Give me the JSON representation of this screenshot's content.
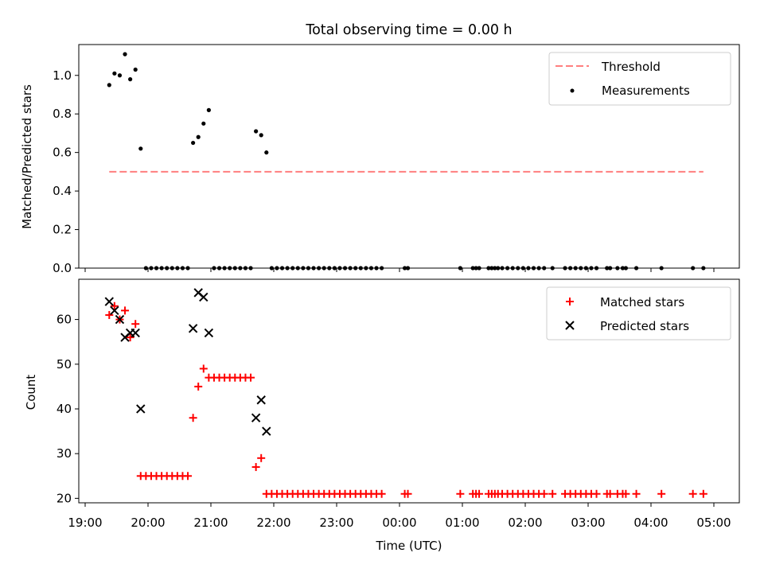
{
  "title": "Total observing time = 0.00 h",
  "colors": {
    "threshold": "#ff7f7f",
    "measurements": "#000000",
    "matched": "#ff0000",
    "predicted": "#000000"
  },
  "chart_data": [
    {
      "type": "scatter",
      "ylabel": "Matched/Predicted stars",
      "ylim": [
        0,
        1.16
      ],
      "yticks": [
        "0.0",
        "0.2",
        "0.4",
        "0.6",
        "0.8",
        "1.0"
      ],
      "grid": false,
      "legend": "top-right",
      "threshold": {
        "name": "Threshold",
        "y": 0.5,
        "x_start": "19:23",
        "x_end": "04:50"
      },
      "series": [
        {
          "name": "Measurements",
          "x": [
            "19:23",
            "19:28",
            "19:33",
            "19:38",
            "19:43",
            "19:48",
            "19:53",
            "19:58",
            "20:03",
            "20:08",
            "20:13",
            "20:18",
            "20:23",
            "20:28",
            "20:33",
            "20:38",
            "20:43",
            "20:48",
            "20:53",
            "20:58",
            "21:03",
            "21:08",
            "21:13",
            "21:18",
            "21:23",
            "21:28",
            "21:33",
            "21:38",
            "21:43",
            "21:48",
            "21:53",
            "21:58",
            "22:03",
            "22:08",
            "22:13",
            "22:18",
            "22:23",
            "22:28",
            "22:33",
            "22:38",
            "22:43",
            "22:48",
            "22:53",
            "22:58",
            "23:03",
            "23:08",
            "23:13",
            "23:18",
            "23:23",
            "23:28",
            "23:33",
            "23:38",
            "23:43",
            "00:05",
            "00:08",
            "00:58",
            "01:10",
            "01:13",
            "01:16",
            "01:25",
            "01:28",
            "01:31",
            "01:34",
            "01:38",
            "01:43",
            "01:48",
            "01:53",
            "01:58",
            "02:03",
            "02:08",
            "02:13",
            "02:18",
            "02:26",
            "02:38",
            "02:43",
            "02:48",
            "02:53",
            "02:58",
            "03:03",
            "03:08",
            "03:18",
            "03:21",
            "03:28",
            "03:33",
            "03:36",
            "03:46",
            "04:10",
            "04:40",
            "04:50"
          ],
          "y": [
            0.95,
            1.01,
            1.0,
            1.11,
            0.98,
            1.03,
            0.62,
            0,
            0,
            0,
            0,
            0,
            0,
            0,
            0,
            0,
            0.65,
            0.68,
            0.75,
            0.82,
            0,
            0,
            0,
            0,
            0,
            0,
            0,
            0,
            0.71,
            0.69,
            0.6,
            0,
            0,
            0,
            0,
            0,
            0,
            0,
            0,
            0,
            0,
            0,
            0,
            0,
            0,
            0,
            0,
            0,
            0,
            0,
            0,
            0,
            0,
            0,
            0,
            0,
            0,
            0,
            0,
            0,
            0,
            0,
            0,
            0,
            0,
            0,
            0,
            0,
            0,
            0,
            0,
            0,
            0,
            0,
            0,
            0,
            0,
            0,
            0,
            0,
            0,
            0,
            0,
            0,
            0,
            0,
            0,
            0,
            0
          ]
        }
      ]
    },
    {
      "type": "scatter",
      "ylabel": "Count",
      "xlabel": "Time (UTC)",
      "ylim": [
        19,
        69
      ],
      "yticks": [
        "20",
        "30",
        "40",
        "50",
        "60"
      ],
      "xticks": [
        "19:00",
        "20:00",
        "21:00",
        "22:00",
        "23:00",
        "00:00",
        "01:00",
        "02:00",
        "03:00",
        "04:00",
        "05:00"
      ],
      "grid": false,
      "legend": "top-right",
      "series": [
        {
          "name": "Matched stars",
          "marker": "+",
          "x": [
            "19:23",
            "19:28",
            "19:33",
            "19:38",
            "19:43",
            "19:48",
            "19:53",
            "19:58",
            "20:03",
            "20:08",
            "20:13",
            "20:18",
            "20:23",
            "20:28",
            "20:33",
            "20:38",
            "20:43",
            "20:48",
            "20:53",
            "20:58",
            "21:03",
            "21:08",
            "21:13",
            "21:18",
            "21:23",
            "21:28",
            "21:33",
            "21:38",
            "21:43",
            "21:48",
            "21:53",
            "21:58",
            "22:03",
            "22:08",
            "22:13",
            "22:18",
            "22:23",
            "22:28",
            "22:33",
            "22:38",
            "22:43",
            "22:48",
            "22:53",
            "22:58",
            "23:03",
            "23:08",
            "23:13",
            "23:18",
            "23:23",
            "23:28",
            "23:33",
            "23:38",
            "23:43",
            "00:05",
            "00:08",
            "00:58",
            "01:10",
            "01:13",
            "01:16",
            "01:25",
            "01:28",
            "01:31",
            "01:34",
            "01:38",
            "01:43",
            "01:48",
            "01:53",
            "01:58",
            "02:03",
            "02:08",
            "02:13",
            "02:18",
            "02:26",
            "02:38",
            "02:43",
            "02:48",
            "02:53",
            "02:58",
            "03:03",
            "03:08",
            "03:18",
            "03:21",
            "03:28",
            "03:33",
            "03:36",
            "03:46",
            "04:10",
            "04:40",
            "04:50"
          ],
          "y": [
            61,
            63,
            60,
            62,
            56,
            59,
            25,
            25,
            25,
            25,
            25,
            25,
            25,
            25,
            25,
            25,
            38,
            45,
            49,
            47,
            47,
            47,
            47,
            47,
            47,
            47,
            47,
            47,
            27,
            29,
            21,
            21,
            21,
            21,
            21,
            21,
            21,
            21,
            21,
            21,
            21,
            21,
            21,
            21,
            21,
            21,
            21,
            21,
            21,
            21,
            21,
            21,
            21,
            21,
            21,
            21,
            21,
            21,
            21,
            21,
            21,
            21,
            21,
            21,
            21,
            21,
            21,
            21,
            21,
            21,
            21,
            21,
            21,
            21,
            21,
            21,
            21,
            21,
            21,
            21,
            21,
            21,
            21,
            21,
            21,
            21,
            21,
            21,
            21
          ]
        },
        {
          "name": "Predicted stars",
          "marker": "x",
          "x": [
            "19:23",
            "19:28",
            "19:33",
            "19:38",
            "19:43",
            "19:48",
            "19:53",
            "20:43",
            "20:48",
            "20:53",
            "20:58",
            "21:43",
            "21:48",
            "21:53"
          ],
          "y": [
            64,
            62,
            60,
            56,
            57,
            57,
            40,
            58,
            66,
            65,
            57,
            38,
            42,
            35
          ]
        }
      ]
    }
  ]
}
